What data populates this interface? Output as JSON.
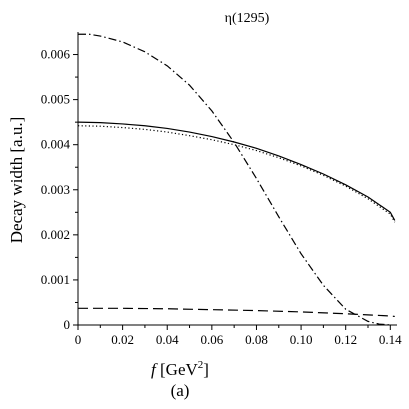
{
  "chart_data": {
    "type": "line",
    "title": "η(1295)",
    "xlabel": "f [GeV²]",
    "xlabel_italic_part": "f",
    "xlabel_unit_part": "[GeV",
    "xlabel_exp": "2",
    "xlabel_close": "]",
    "ylabel": "Decay width [a.u.]",
    "caption": "(a)",
    "xlim": [
      0,
      0.143
    ],
    "ylim": [
      0,
      0.0065
    ],
    "xticks": [
      "0",
      "0.02",
      "0.04",
      "0.06",
      "0.08",
      "0.10",
      "0.12",
      "0.14"
    ],
    "xtick_values": [
      0,
      0.02,
      0.04,
      0.06,
      0.08,
      0.1,
      0.12,
      0.14
    ],
    "yticks": [
      "0",
      "0.001",
      "0.002",
      "0.003",
      "0.004",
      "0.005",
      "0.006"
    ],
    "ytick_values": [
      0,
      0.001,
      0.002,
      0.003,
      0.004,
      0.005,
      0.006
    ],
    "grid": false,
    "series": [
      {
        "style": "solid",
        "x": [
          0,
          0.01,
          0.02,
          0.03,
          0.04,
          0.05,
          0.06,
          0.07,
          0.08,
          0.09,
          0.1,
          0.11,
          0.12,
          0.13,
          0.14,
          0.142
        ],
        "y": [
          0.0045,
          0.00449,
          0.00446,
          0.00442,
          0.00436,
          0.00428,
          0.00418,
          0.00406,
          0.00392,
          0.00375,
          0.00356,
          0.00335,
          0.00311,
          0.00284,
          0.0025,
          0.00232
        ]
      },
      {
        "style": "dotted",
        "x": [
          0,
          0.01,
          0.02,
          0.03,
          0.04,
          0.05,
          0.06,
          0.07,
          0.08,
          0.09,
          0.1,
          0.11,
          0.12,
          0.13,
          0.14,
          0.142
        ],
        "y": [
          0.00442,
          0.00441,
          0.00438,
          0.00434,
          0.00428,
          0.0042,
          0.00411,
          0.004,
          0.00387,
          0.00371,
          0.00353,
          0.00332,
          0.00308,
          0.0028,
          0.00246,
          0.00228
        ]
      },
      {
        "style": "dashdot",
        "x": [
          0,
          0.005,
          0.01,
          0.02,
          0.03,
          0.04,
          0.05,
          0.06,
          0.07,
          0.08,
          0.09,
          0.1,
          0.11,
          0.12,
          0.13,
          0.135,
          0.14
        ],
        "y": [
          0.00645,
          0.00645,
          0.00641,
          0.00628,
          0.00606,
          0.00575,
          0.00532,
          0.00475,
          0.00405,
          0.00325,
          0.0024,
          0.00158,
          0.00088,
          0.00035,
          8e-05,
          2e-05,
          0.0
        ]
      },
      {
        "style": "dashed",
        "x": [
          0,
          0.02,
          0.04,
          0.06,
          0.08,
          0.1,
          0.12,
          0.14,
          0.142
        ],
        "y": [
          0.00037,
          0.00037,
          0.00036,
          0.00034,
          0.00032,
          0.00029,
          0.00025,
          0.0002,
          0.00019
        ]
      }
    ]
  }
}
